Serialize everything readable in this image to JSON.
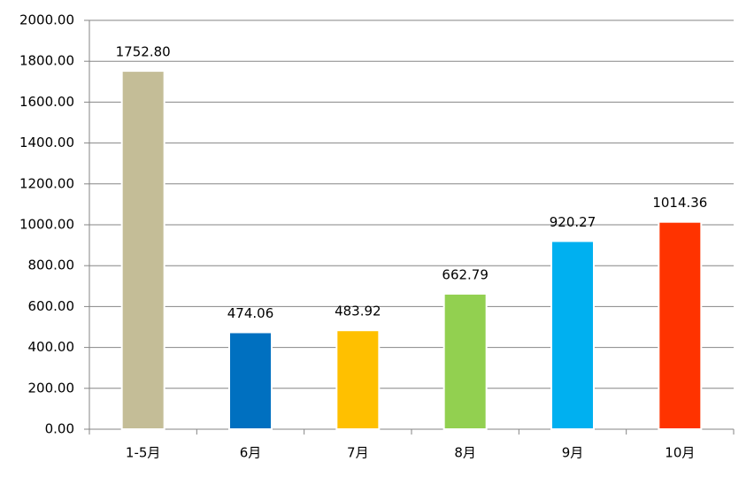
{
  "chart_data": {
    "type": "bar",
    "categories": [
      "1-5月",
      "6月",
      "7月",
      "8月",
      "9月",
      "10月"
    ],
    "values": [
      1752.8,
      474.06,
      483.92,
      662.79,
      920.27,
      1014.36
    ],
    "value_labels": [
      "1752.80",
      "474.06",
      "483.92",
      "662.79",
      "920.27",
      "1014.36"
    ],
    "colors": [
      "#c4bd97",
      "#0070c0",
      "#ffc000",
      "#92d050",
      "#00b0f0",
      "#ff3300"
    ],
    "ylim": [
      0,
      2000
    ],
    "yticks": [
      {
        "value": 0,
        "label": "0.00"
      },
      {
        "value": 200,
        "label": "200.00"
      },
      {
        "value": 400,
        "label": "400.00"
      },
      {
        "value": 600,
        "label": "600.00"
      },
      {
        "value": 800,
        "label": "800.00"
      },
      {
        "value": 1000,
        "label": "1000.00"
      },
      {
        "value": 1200,
        "label": "1200.00"
      },
      {
        "value": 1400,
        "label": "1400.00"
      },
      {
        "value": 1600,
        "label": "1600.00"
      },
      {
        "value": 1800,
        "label": "1800.00"
      },
      {
        "value": 2000,
        "label": "2000.00"
      }
    ],
    "grid": true
  }
}
